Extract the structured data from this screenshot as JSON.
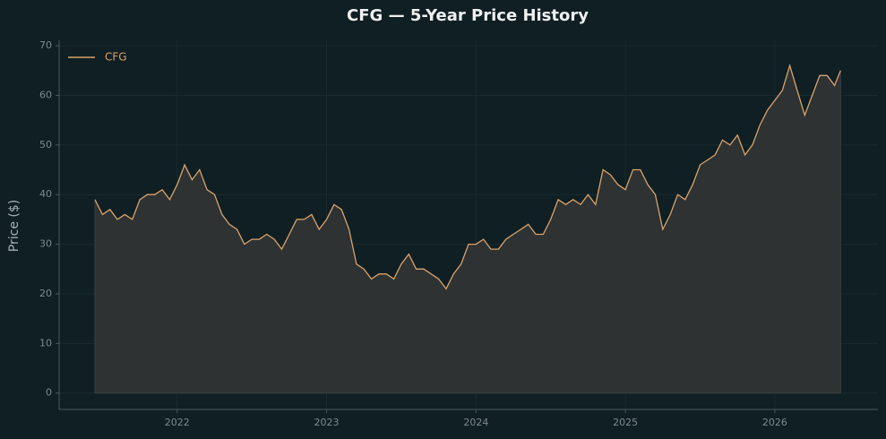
{
  "chart_data": {
    "type": "line",
    "title": "CFG — 5-Year Price History",
    "ylabel": "Price ($)",
    "x": [
      2021.45,
      2021.5,
      2021.55,
      2021.6,
      2021.65,
      2021.7,
      2021.75,
      2021.8,
      2021.85,
      2021.9,
      2021.95,
      2022.0,
      2022.05,
      2022.1,
      2022.15,
      2022.2,
      2022.25,
      2022.3,
      2022.35,
      2022.4,
      2022.45,
      2022.5,
      2022.55,
      2022.6,
      2022.65,
      2022.7,
      2022.75,
      2022.8,
      2022.85,
      2022.9,
      2022.95,
      2023.0,
      2023.05,
      2023.1,
      2023.15,
      2023.2,
      2023.25,
      2023.3,
      2023.35,
      2023.4,
      2023.45,
      2023.5,
      2023.55,
      2023.6,
      2023.65,
      2023.7,
      2023.75,
      2023.8,
      2023.85,
      2023.9,
      2023.95,
      2024.0,
      2024.05,
      2024.1,
      2024.15,
      2024.2,
      2024.25,
      2024.3,
      2024.35,
      2024.4,
      2024.45,
      2024.5,
      2024.55,
      2024.6,
      2024.65,
      2024.7,
      2024.75,
      2024.8,
      2024.85,
      2024.9,
      2024.95,
      2025.0,
      2025.05,
      2025.1,
      2025.15,
      2025.2,
      2025.25,
      2025.3,
      2025.35,
      2025.4,
      2025.45,
      2025.5,
      2025.55,
      2025.6,
      2025.65,
      2025.7,
      2025.75,
      2025.8,
      2025.85,
      2025.9,
      2025.95,
      2026.0,
      2026.05,
      2026.1,
      2026.15,
      2026.2,
      2026.25,
      2026.3,
      2026.35,
      2026.4,
      2026.44
    ],
    "series": [
      {
        "name": "CFG",
        "color": "#d9a26a",
        "fill": "#2e3232",
        "values": [
          39,
          36,
          37,
          35,
          36,
          35,
          39,
          40,
          40,
          41,
          39,
          42,
          46,
          43,
          45,
          41,
          40,
          36,
          34,
          33,
          30,
          31,
          31,
          32,
          31,
          29,
          32,
          35,
          35,
          36,
          33,
          35,
          38,
          37,
          33,
          26,
          25,
          23,
          24,
          24,
          23,
          26,
          28,
          25,
          25,
          24,
          23,
          21,
          24,
          26,
          30,
          30,
          31,
          29,
          29,
          31,
          32,
          33,
          34,
          32,
          32,
          35,
          39,
          38,
          39,
          38,
          40,
          38,
          45,
          44,
          42,
          41,
          45,
          45,
          42,
          40,
          33,
          36,
          40,
          39,
          42,
          46,
          47,
          48,
          51,
          50,
          52,
          48,
          50,
          54,
          57,
          59,
          61,
          66,
          61,
          56,
          60,
          64,
          64,
          62,
          65
        ]
      }
    ],
    "xlim": [
      2021.21,
      2026.69
    ],
    "xticks": [
      2022,
      2023,
      2024,
      2025,
      2026
    ],
    "ylim": [
      -3.3,
      71.1
    ],
    "yticks": [
      0,
      10,
      20,
      30,
      40,
      50,
      60,
      70
    ],
    "grid": true,
    "legend": "upper left"
  }
}
